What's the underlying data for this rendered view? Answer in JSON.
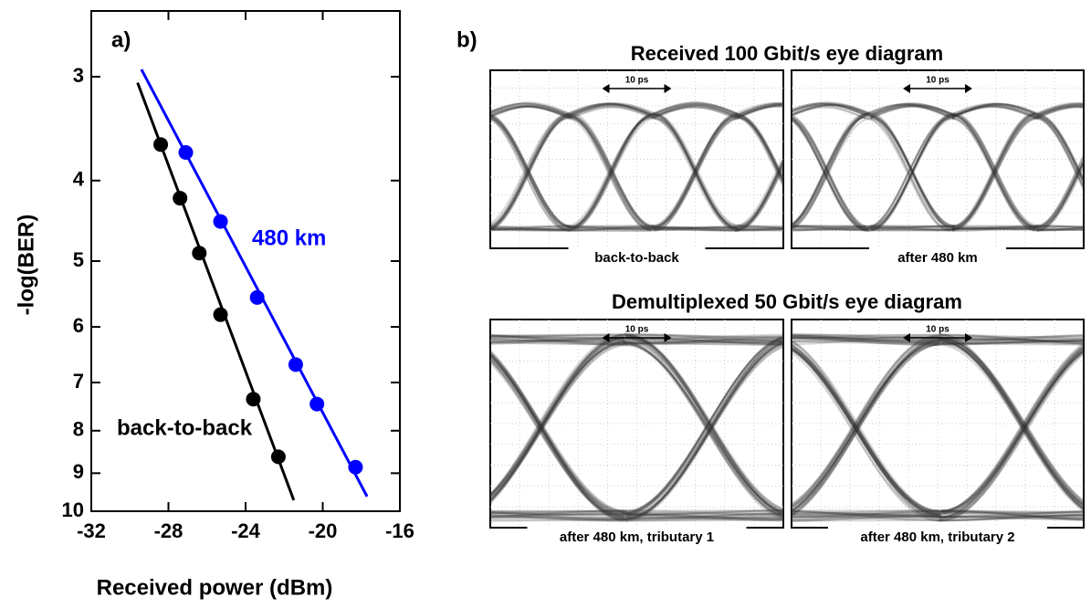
{
  "chart_data": {
    "type": "scatter",
    "panel_label": "a)",
    "x_label": "Received power (dBm)",
    "y_label": "-log(BER)",
    "xlim": [
      -32,
      -16
    ],
    "xticks": [
      -32,
      -28,
      -24,
      -20,
      -16
    ],
    "ylim": [
      2.5,
      10
    ],
    "yticks": [
      3,
      4,
      5,
      6,
      7,
      8,
      9,
      10
    ],
    "yscale": "log",
    "y_inverted": true,
    "series": [
      {
        "name": "back-to-back",
        "color": "#000000",
        "x": [
          -28.4,
          -27.4,
          -26.4,
          -25.3,
          -23.6,
          -22.3
        ],
        "values": [
          3.62,
          4.2,
          4.89,
          5.8,
          7.33,
          8.6
        ],
        "fit": [
          [
            -29.6,
            3.05
          ],
          [
            -21.5,
            9.7
          ]
        ]
      },
      {
        "name": "480 km",
        "color": "#0000ff",
        "x": [
          -27.1,
          -25.3,
          -23.4,
          -21.4,
          -20.3,
          -18.3
        ],
        "values": [
          3.7,
          4.48,
          5.53,
          6.66,
          7.43,
          8.85
        ],
        "fit": [
          [
            -29.4,
            2.94
          ],
          [
            -17.7,
            9.6
          ]
        ]
      }
    ]
  },
  "panel_b": {
    "panel_label": "b)",
    "row_titles": [
      "Received 100 Gbit/s eye diagram",
      "Demultiplexed 50 Gbit/s eye diagram"
    ],
    "time_scale": "10 ps",
    "captions": [
      "back-to-back",
      "after 480 km",
      "after 480 km, tributary 1",
      "after 480 km, tributary 2"
    ]
  }
}
